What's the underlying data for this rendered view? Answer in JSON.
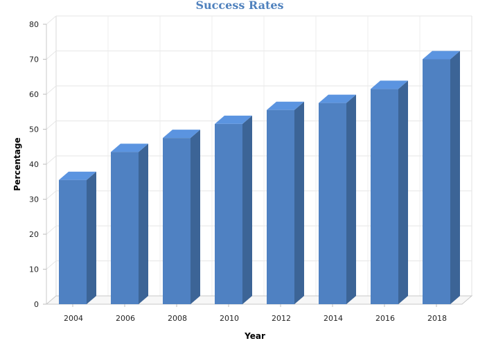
{
  "chart_data": {
    "type": "bar",
    "style": "3d",
    "title": "Success Rates",
    "xlabel": "Year",
    "ylabel": "Percentage",
    "categories": [
      "2004",
      "2006",
      "2008",
      "2010",
      "2012",
      "2014",
      "2016",
      "2018"
    ],
    "values": [
      35.5,
      43.5,
      47.5,
      51.5,
      55.5,
      57.5,
      61.5,
      70
    ],
    "ylim": [
      0,
      80
    ],
    "yticks": [
      0,
      10,
      20,
      30,
      40,
      50,
      60,
      70,
      80
    ],
    "grid": true,
    "legend": "none",
    "colors": {
      "bar_front": "#4f81c2",
      "bar_top": "#5b94e0",
      "bar_side": "#3c6496",
      "title": "#4f81bd",
      "grid": "#e6e6e6"
    }
  }
}
